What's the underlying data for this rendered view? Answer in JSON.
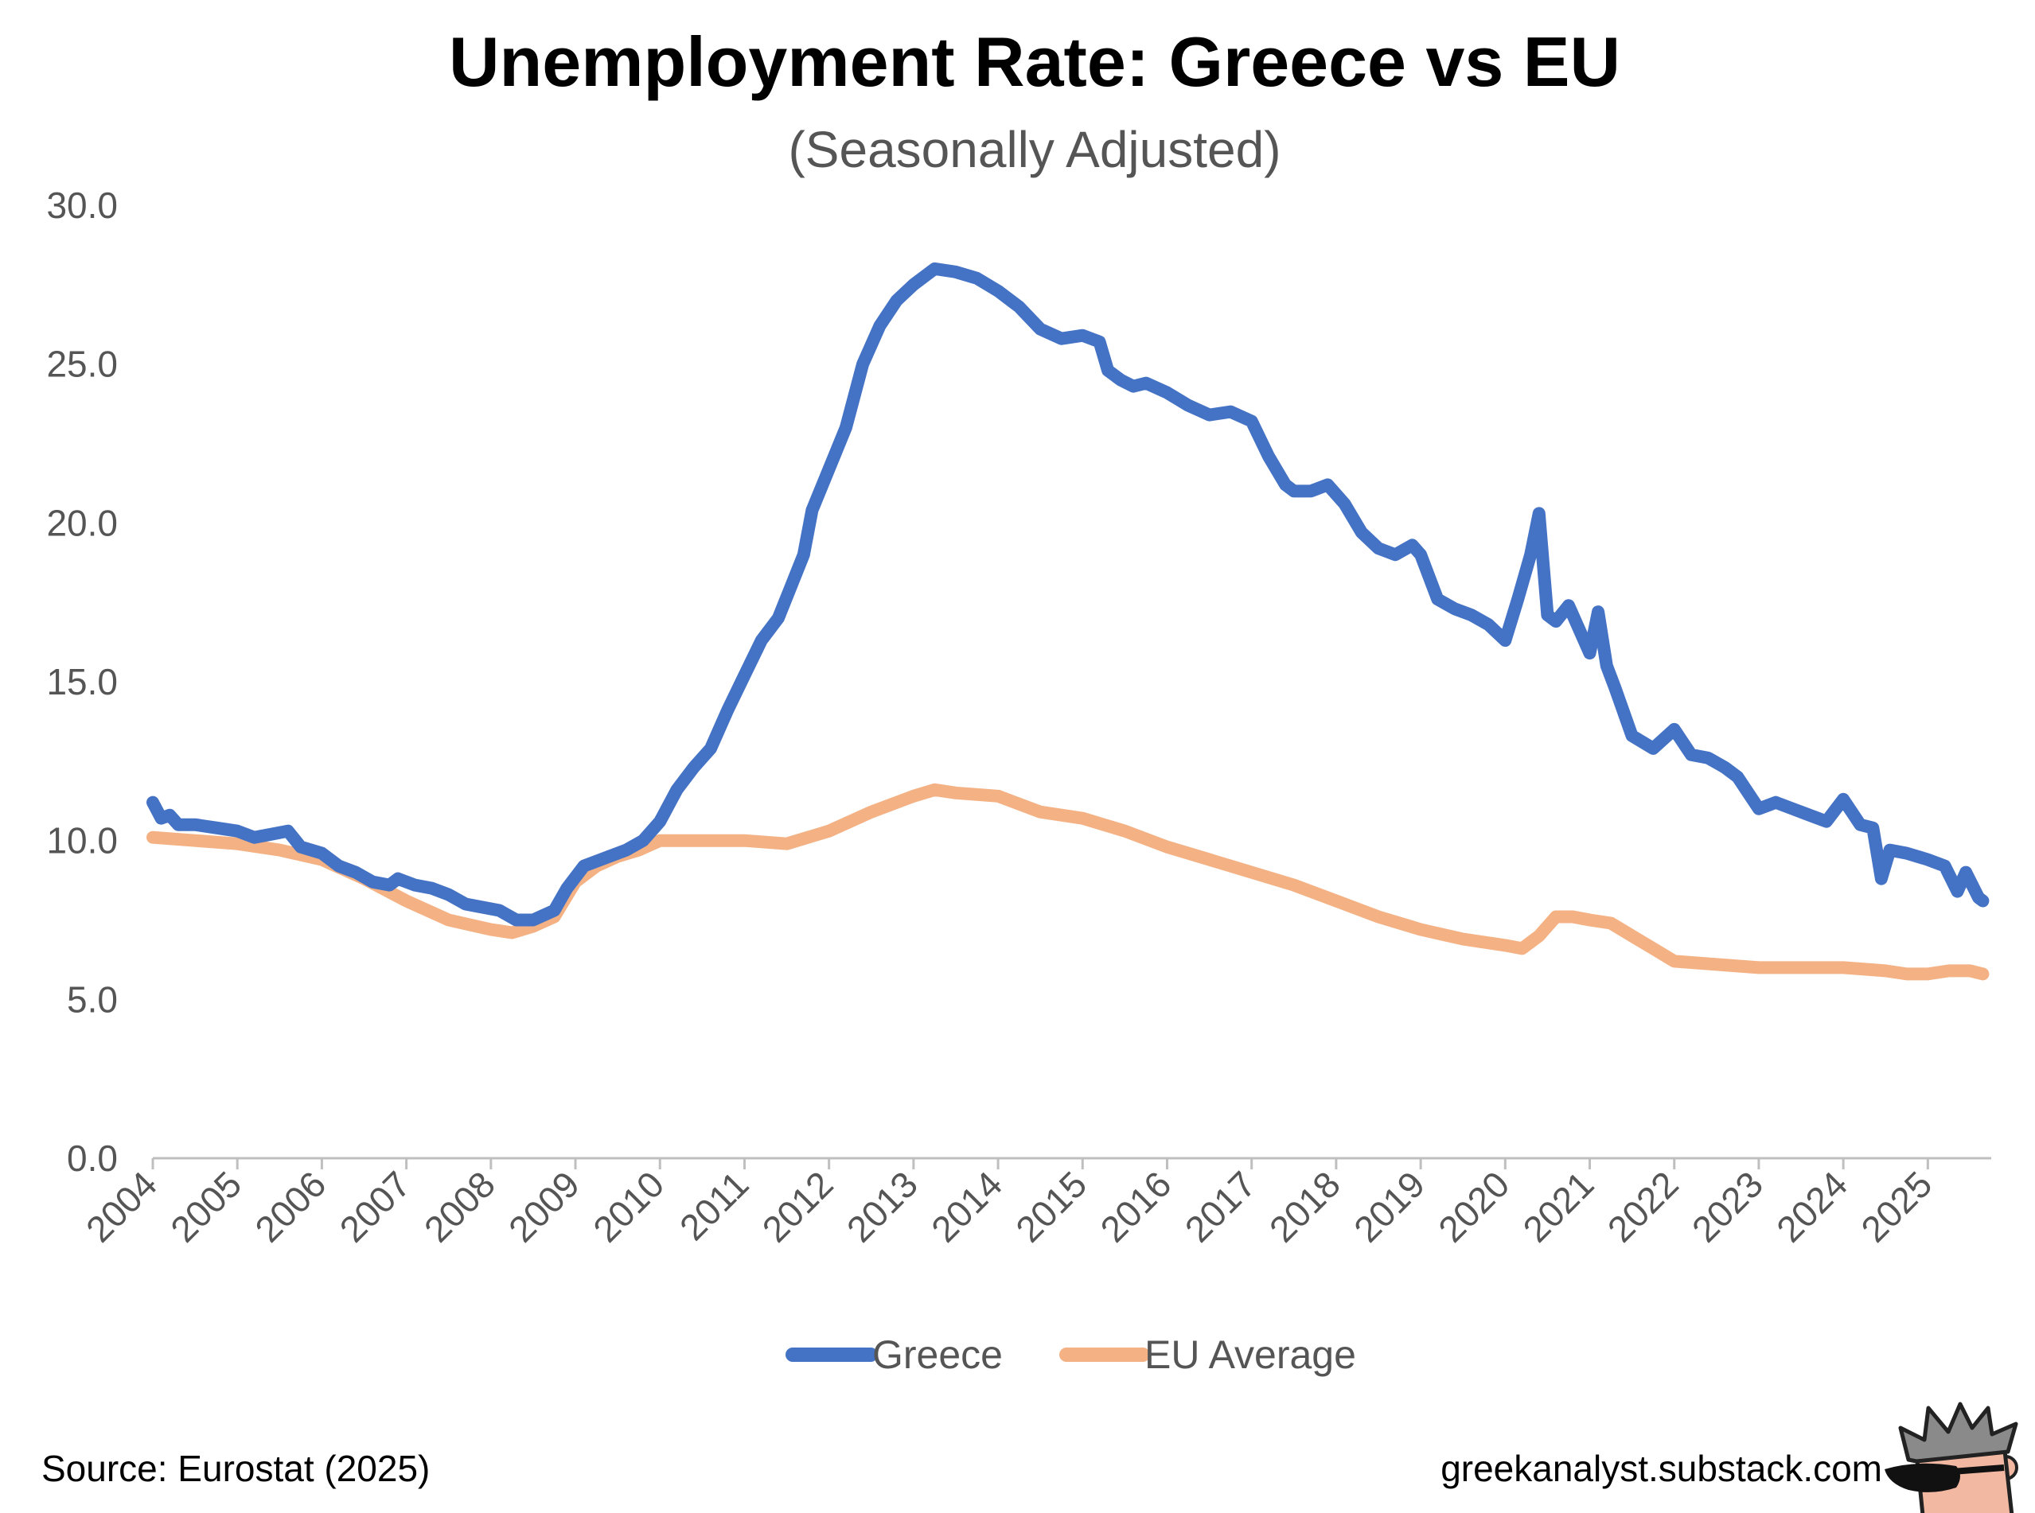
{
  "colors": {
    "greece": "#4472C4",
    "eu": "#F4B183",
    "axis": "#BFBFBF",
    "text": "#555555"
  },
  "footer": {
    "source": "Source: Eurostat (2025)",
    "site": "greekanalyst.substack.com"
  },
  "chart_data": {
    "type": "line",
    "title": "Unemployment Rate: Greece vs EU",
    "subtitle": "(Seasonally Adjusted)",
    "xlabel": "",
    "ylabel": "",
    "xlim": [
      2004.0,
      2025.75
    ],
    "ylim": [
      0,
      30
    ],
    "yticks": [
      0,
      5,
      10,
      15,
      20,
      25,
      30
    ],
    "ytick_labels": [
      "0.0",
      "5.0",
      "10.0",
      "15.0",
      "20.0",
      "25.0",
      "30.0"
    ],
    "xtick_labels": [
      "2004",
      "2005",
      "2006",
      "2007",
      "2008",
      "2009",
      "2010",
      "2011",
      "2012",
      "2013",
      "2014",
      "2015",
      "2016",
      "2017",
      "2018",
      "2019",
      "2020",
      "2021",
      "2022",
      "2023",
      "2024",
      "2025"
    ],
    "grid": false,
    "legend": "bottom",
    "series": [
      {
        "name": "Greece",
        "x": [
          2004.0,
          2004.1,
          2004.2,
          2004.3,
          2004.5,
          2004.75,
          2005.0,
          2005.2,
          2005.4,
          2005.6,
          2005.75,
          2006.0,
          2006.2,
          2006.4,
          2006.6,
          2006.8,
          2006.9,
          2007.0,
          2007.1,
          2007.3,
          2007.5,
          2007.7,
          2007.9,
          2008.1,
          2008.3,
          2008.5,
          2008.75,
          2008.9,
          2009.1,
          2009.3,
          2009.6,
          2009.8,
          2010.0,
          2010.2,
          2010.4,
          2010.6,
          2010.8,
          2011.0,
          2011.2,
          2011.4,
          2011.55,
          2011.7,
          2011.8,
          2012.0,
          2012.2,
          2012.4,
          2012.6,
          2012.8,
          2013.0,
          2013.25,
          2013.5,
          2013.75,
          2014.0,
          2014.25,
          2014.5,
          2014.75,
          2015.0,
          2015.2,
          2015.3,
          2015.45,
          2015.6,
          2015.75,
          2016.0,
          2016.25,
          2016.5,
          2016.75,
          2017.0,
          2017.2,
          2017.4,
          2017.5,
          2017.7,
          2017.9,
          2018.1,
          2018.3,
          2018.5,
          2018.7,
          2018.9,
          2019.0,
          2019.2,
          2019.4,
          2019.6,
          2019.8,
          2020.0,
          2020.15,
          2020.3,
          2020.4,
          2020.5,
          2020.6,
          2020.75,
          2020.9,
          2021.0,
          2021.1,
          2021.2,
          2021.3,
          2021.5,
          2021.75,
          2022.0,
          2022.2,
          2022.4,
          2022.6,
          2022.75,
          2022.85,
          2023.0,
          2023.2,
          2023.4,
          2023.6,
          2023.8,
          2024.0,
          2024.2,
          2024.35,
          2024.45,
          2024.55,
          2024.75,
          2025.0,
          2025.2,
          2025.35,
          2025.45,
          2025.6,
          2025.65
        ],
        "values": [
          11.2,
          10.7,
          10.8,
          10.5,
          10.5,
          10.4,
          10.3,
          10.1,
          10.2,
          10.3,
          9.8,
          9.6,
          9.2,
          9.0,
          8.7,
          8.6,
          8.8,
          8.7,
          8.6,
          8.5,
          8.3,
          8.0,
          7.9,
          7.8,
          7.5,
          7.5,
          7.8,
          8.5,
          9.2,
          9.4,
          9.7,
          10.0,
          10.6,
          11.6,
          12.3,
          12.9,
          14.1,
          15.2,
          16.3,
          17.0,
          18.0,
          19.0,
          20.4,
          21.7,
          23.0,
          25.0,
          26.2,
          27.0,
          27.5,
          28.0,
          27.9,
          27.7,
          27.3,
          26.8,
          26.1,
          25.8,
          25.9,
          25.7,
          24.8,
          24.5,
          24.3,
          24.4,
          24.1,
          23.7,
          23.4,
          23.5,
          23.2,
          22.1,
          21.2,
          21.0,
          21.0,
          21.2,
          20.6,
          19.7,
          19.2,
          19.0,
          19.3,
          19.0,
          17.6,
          17.3,
          17.1,
          16.8,
          16.3,
          17.6,
          19.0,
          20.3,
          17.1,
          16.9,
          17.4,
          16.5,
          15.9,
          17.2,
          15.5,
          14.8,
          13.3,
          12.9,
          13.5,
          12.7,
          12.6,
          12.3,
          12.0,
          11.6,
          11.0,
          11.2,
          11.0,
          10.8,
          10.6,
          11.3,
          10.5,
          10.4,
          8.8,
          9.7,
          9.6,
          9.4,
          9.2,
          8.4,
          9.0,
          8.2,
          8.1
        ]
      },
      {
        "name": "EU Average",
        "x": [
          2004.0,
          2004.5,
          2005.0,
          2005.5,
          2006.0,
          2006.5,
          2007.0,
          2007.5,
          2008.0,
          2008.25,
          2008.5,
          2008.75,
          2009.0,
          2009.25,
          2009.5,
          2009.75,
          2010.0,
          2010.5,
          2011.0,
          2011.5,
          2012.0,
          2012.5,
          2013.0,
          2013.25,
          2013.5,
          2014.0,
          2014.5,
          2015.0,
          2015.5,
          2016.0,
          2016.5,
          2017.0,
          2017.5,
          2018.0,
          2018.5,
          2019.0,
          2019.5,
          2020.0,
          2020.2,
          2020.4,
          2020.6,
          2020.8,
          2021.0,
          2021.25,
          2021.5,
          2021.75,
          2022.0,
          2022.5,
          2023.0,
          2023.5,
          2024.0,
          2024.5,
          2024.75,
          2025.0,
          2025.25,
          2025.5,
          2025.65
        ],
        "values": [
          10.1,
          10.0,
          9.9,
          9.7,
          9.4,
          8.8,
          8.1,
          7.5,
          7.2,
          7.1,
          7.3,
          7.6,
          8.7,
          9.2,
          9.5,
          9.7,
          10.0,
          10.0,
          10.0,
          9.9,
          10.3,
          10.9,
          11.4,
          11.6,
          11.5,
          11.4,
          10.9,
          10.7,
          10.3,
          9.8,
          9.4,
          9.0,
          8.6,
          8.1,
          7.6,
          7.2,
          6.9,
          6.7,
          6.6,
          7.0,
          7.6,
          7.6,
          7.5,
          7.4,
          7.0,
          6.6,
          6.2,
          6.1,
          6.0,
          6.0,
          6.0,
          5.9,
          5.8,
          5.8,
          5.9,
          5.9,
          5.8
        ]
      }
    ]
  }
}
